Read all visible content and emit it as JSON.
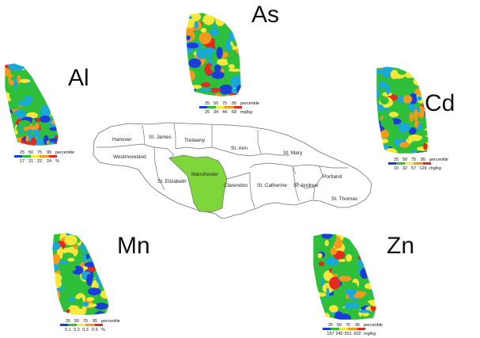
{
  "jamaica_map": {
    "parishes": [
      "Hanover",
      "St. James",
      "Trelawny",
      "St. Ann",
      "St. Mary",
      "Westmoreland",
      "St. Elizabeth",
      "Manchester",
      "Clarendon",
      "St. Catherine",
      "St. Andrew",
      "Portland",
      "St. Thomas"
    ],
    "highlighted_parish": "Manchester",
    "highlight_color": "#7fd63a"
  },
  "panels": [
    {
      "element": "As",
      "percentile_ticks": [
        "25",
        "50",
        "75",
        "95"
      ],
      "percentile_label": "percentile",
      "value_ticks": [
        "25",
        "34",
        "44",
        "68"
      ],
      "unit": "mg/kg"
    },
    {
      "element": "Al",
      "percentile_ticks": [
        "25",
        "50",
        "75",
        "95"
      ],
      "percentile_label": "percentile",
      "value_ticks": [
        "17",
        "21",
        "22",
        "24"
      ],
      "unit": "%"
    },
    {
      "element": "Cd",
      "percentile_ticks": [
        "25",
        "50",
        "75",
        "95"
      ],
      "percentile_label": "percentile",
      "value_ticks": [
        "10",
        "32",
        "57",
        "129"
      ],
      "unit": "mg/kg"
    },
    {
      "element": "Mn",
      "percentile_ticks": [
        "25",
        "50",
        "75",
        "95"
      ],
      "percentile_label": "percentile",
      "value_ticks": [
        "0.1",
        "0.2",
        "0.3",
        "0.5"
      ],
      "unit": "%"
    },
    {
      "element": "Zn",
      "percentile_ticks": [
        "25",
        "50",
        "75",
        "95"
      ],
      "percentile_label": "percentile",
      "value_ticks": [
        "157",
        "240",
        "351",
        "602"
      ],
      "unit": "mg/kg"
    }
  ],
  "color_scale": [
    "#1a3fd8",
    "#18a9d8",
    "#2fbf3a",
    "#f6e83a",
    "#f39a1e",
    "#e42a1e"
  ]
}
